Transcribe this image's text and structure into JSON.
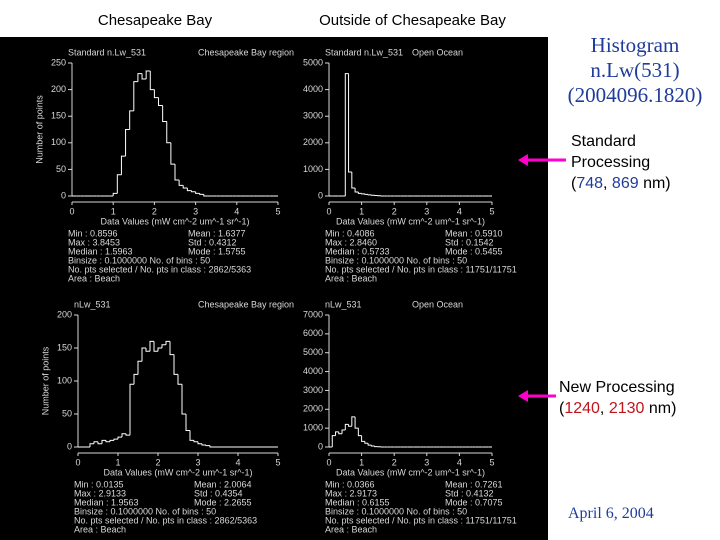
{
  "slide": {
    "col_left": "Chesapeake Bay",
    "col_right": "Outside of Chesapeake Bay",
    "title1": "Histogram",
    "title2": "n.Lw(531)",
    "title3": "(2004096.1820)",
    "standard": {
      "line1": "Standard",
      "line2": "Processing",
      "open": "(",
      "a": "748",
      "sep": ", ",
      "b": "869",
      "close": " nm)"
    },
    "newproc": {
      "line1": "New Processing",
      "open": "(",
      "a": "1240",
      "sep": ", ",
      "b": "2130",
      "close": " nm)"
    },
    "date": "April 6, 2004"
  },
  "chart_data": [
    {
      "type": "histogram",
      "title": "Standard n.Lw_531",
      "subtitle": "Chesapeake Bay region",
      "xlabel": "Data Values (mW cm^-2 um^-1 sr^-1)",
      "ylabel": "Number of points",
      "color": "#ffffff",
      "bins": [
        0,
        0.1,
        0.2,
        0.3,
        0.4,
        0.5,
        0.6,
        0.7,
        0.8,
        0.9,
        1,
        1.1,
        1.2,
        1.3,
        1.4,
        1.5,
        1.6,
        1.7,
        1.8,
        1.9,
        2,
        2.1,
        2.2,
        2.3,
        2.4,
        2.5,
        2.6,
        2.7,
        2.8,
        2.9,
        3,
        3.1,
        3.2,
        3.3,
        3.4,
        3.5,
        3.6,
        3.7,
        3.8,
        3.9,
        4,
        4.1,
        4.2,
        4.3,
        4.4,
        4.5,
        4.6,
        4.7,
        4.8,
        4.9,
        5
      ],
      "values": [
        0,
        0,
        0,
        0,
        0,
        0,
        0,
        0,
        0,
        0,
        5,
        40,
        75,
        125,
        160,
        215,
        230,
        220,
        235,
        200,
        185,
        170,
        140,
        100,
        60,
        30,
        20,
        15,
        10,
        8,
        5,
        3,
        0,
        0,
        0,
        0,
        0,
        0,
        0,
        0,
        0,
        0,
        0,
        0,
        0,
        0,
        0,
        0,
        0,
        0
      ],
      "xlim": [
        0,
        5
      ],
      "xticks": [
        0,
        1,
        2,
        3,
        4,
        5
      ],
      "ylim": [
        0,
        250
      ],
      "yticks": [
        0,
        50,
        100,
        150,
        200,
        250
      ],
      "stats": [
        "Min : 0.8596",
        "Max : 3.8453",
        "Median : 1.5963",
        "Mean : 1.6377",
        "Std : 0.4312",
        "Mode : 1.5755",
        "Binsize : 0.1000000   No. of bins : 50",
        "No. pts selected / No. pts in class : 2862/5363",
        "Area : Beach"
      ]
    },
    {
      "type": "histogram",
      "title": "Standard n.Lw_531",
      "subtitle": "Open Ocean",
      "xlabel": "Data Values (mW cm^-2 um^-1 sr^-1)",
      "color": "#ffffff",
      "bins": [
        0,
        0.1,
        0.2,
        0.3,
        0.4,
        0.5,
        0.6,
        0.7,
        0.8,
        0.9,
        1,
        1.1,
        1.2,
        1.3,
        1.4,
        1.5,
        1.6,
        1.7,
        1.8,
        1.9,
        2,
        2.1,
        2.2,
        2.3,
        2.4,
        2.5,
        2.6,
        2.7,
        2.8,
        2.9,
        3,
        3.1,
        3.2,
        3.3,
        3.4,
        3.5,
        3.6,
        3.7,
        3.8,
        3.9,
        4,
        4.1,
        4.2,
        4.3,
        4.4,
        4.5,
        4.6,
        4.7,
        4.8,
        4.9,
        5
      ],
      "values": [
        0,
        0,
        0,
        0,
        0,
        4600,
        900,
        300,
        150,
        100,
        80,
        60,
        40,
        30,
        20,
        10,
        0,
        0,
        0,
        0,
        0,
        0,
        0,
        0,
        0,
        0,
        0,
        0,
        0,
        0,
        0,
        0,
        0,
        0,
        0,
        0,
        0,
        0,
        0,
        0,
        0,
        0,
        0,
        0,
        0,
        0,
        0,
        0,
        0,
        0
      ],
      "xlim": [
        0,
        5
      ],
      "xticks": [
        0,
        1,
        2,
        3,
        4,
        5
      ],
      "ylim": [
        0,
        5000
      ],
      "yticks": [
        0,
        1000,
        2000,
        3000,
        4000,
        5000
      ],
      "stats": [
        "Min : 0.4086",
        "Max : 2.8460",
        "Median : 0.5733",
        "Mean : 0.5910",
        "Std : 0.1542",
        "Mode : 0.5455",
        "Binsize : 0.1000000   No. of bins : 50",
        "No. pts selected / No. pts in class : 11751/11751",
        "Area : Beach"
      ]
    },
    {
      "type": "histogram",
      "title": "nLw_531",
      "subtitle": "Chesapeake Bay region",
      "xlabel": "Data Values (mW cm^-2 um^-1 sr^-1)",
      "ylabel": "Number of points",
      "color": "#ffffff",
      "bins": [
        0,
        0.1,
        0.2,
        0.3,
        0.4,
        0.5,
        0.6,
        0.7,
        0.8,
        0.9,
        1,
        1.1,
        1.2,
        1.3,
        1.4,
        1.5,
        1.6,
        1.7,
        1.8,
        1.9,
        2,
        2.1,
        2.2,
        2.3,
        2.4,
        2.5,
        2.6,
        2.7,
        2.8,
        2.9,
        3,
        3.1,
        3.2,
        3.3,
        3.4,
        3.5,
        3.6,
        3.7,
        3.8,
        3.9,
        4,
        4.1,
        4.2,
        4.3,
        4.4,
        4.5,
        4.6,
        4.7,
        4.8,
        4.9,
        5
      ],
      "values": [
        0,
        0,
        0,
        5,
        8,
        5,
        10,
        8,
        10,
        12,
        15,
        20,
        18,
        95,
        110,
        130,
        150,
        145,
        160,
        145,
        150,
        155,
        160,
        140,
        110,
        95,
        50,
        25,
        10,
        8,
        5,
        3,
        2,
        0,
        0,
        0,
        0,
        0,
        0,
        0,
        0,
        0,
        0,
        0,
        0,
        0,
        0,
        0,
        0,
        0
      ],
      "xlim": [
        0,
        5
      ],
      "xticks": [
        0,
        1,
        2,
        3,
        4,
        5
      ],
      "ylim": [
        0,
        200
      ],
      "yticks": [
        0,
        50,
        100,
        150,
        200
      ],
      "stats": [
        "Min : 0.0135",
        "Max : 2.9133",
        "Median : 1.9563",
        "Mean : 2.0064",
        "Std : 0.4354",
        "Mode : 2.2655",
        "Binsize : 0.1000000   No. of bins : 50",
        "No. pts selected / No. pts in class : 2862/5363",
        "Area : Beach"
      ]
    },
    {
      "type": "histogram",
      "title": "nLw_531",
      "subtitle": "Open Ocean",
      "xlabel": "Data Values (mW cm^-2 um^-1 sr^-1)",
      "color": "#ffffff",
      "bins": [
        0,
        0.1,
        0.2,
        0.3,
        0.4,
        0.5,
        0.6,
        0.7,
        0.8,
        0.9,
        1,
        1.1,
        1.2,
        1.3,
        1.4,
        1.5,
        1.6,
        1.7,
        1.8,
        1.9,
        2,
        2.1,
        2.2,
        2.3,
        2.4,
        2.5,
        2.6,
        2.7,
        2.8,
        2.9,
        3,
        3.1,
        3.2,
        3.3,
        3.4,
        3.5,
        3.6,
        3.7,
        3.8,
        3.9,
        4,
        4.1,
        4.2,
        4.3,
        4.4,
        4.5,
        4.6,
        4.7,
        4.8,
        4.9,
        5
      ],
      "values": [
        0,
        600,
        800,
        700,
        900,
        1200,
        1100,
        1600,
        1000,
        600,
        300,
        200,
        100,
        50,
        20,
        10,
        0,
        0,
        0,
        0,
        0,
        0,
        0,
        0,
        0,
        0,
        0,
        0,
        0,
        0,
        0,
        0,
        0,
        0,
        0,
        0,
        0,
        0,
        0,
        0,
        0,
        0,
        0,
        0,
        0,
        0,
        0,
        0,
        0,
        0
      ],
      "xlim": [
        0,
        5
      ],
      "xticks": [
        0,
        1,
        2,
        3,
        4,
        5
      ],
      "ylim": [
        0,
        7000
      ],
      "yticks": [
        0,
        1000,
        2000,
        3000,
        4000,
        5000,
        6000,
        7000
      ],
      "stats": [
        "Min : 0.0366",
        "Max : 2.9173",
        "Median : 0.6155",
        "Mean : 0.7261",
        "Std : 0.4132",
        "Mode : 0.7075",
        "Binsize : 0.1000000   No. of bins : 50",
        "No. pts selected / No. pts in class : 11751/11751",
        "Area : Beach"
      ]
    }
  ]
}
